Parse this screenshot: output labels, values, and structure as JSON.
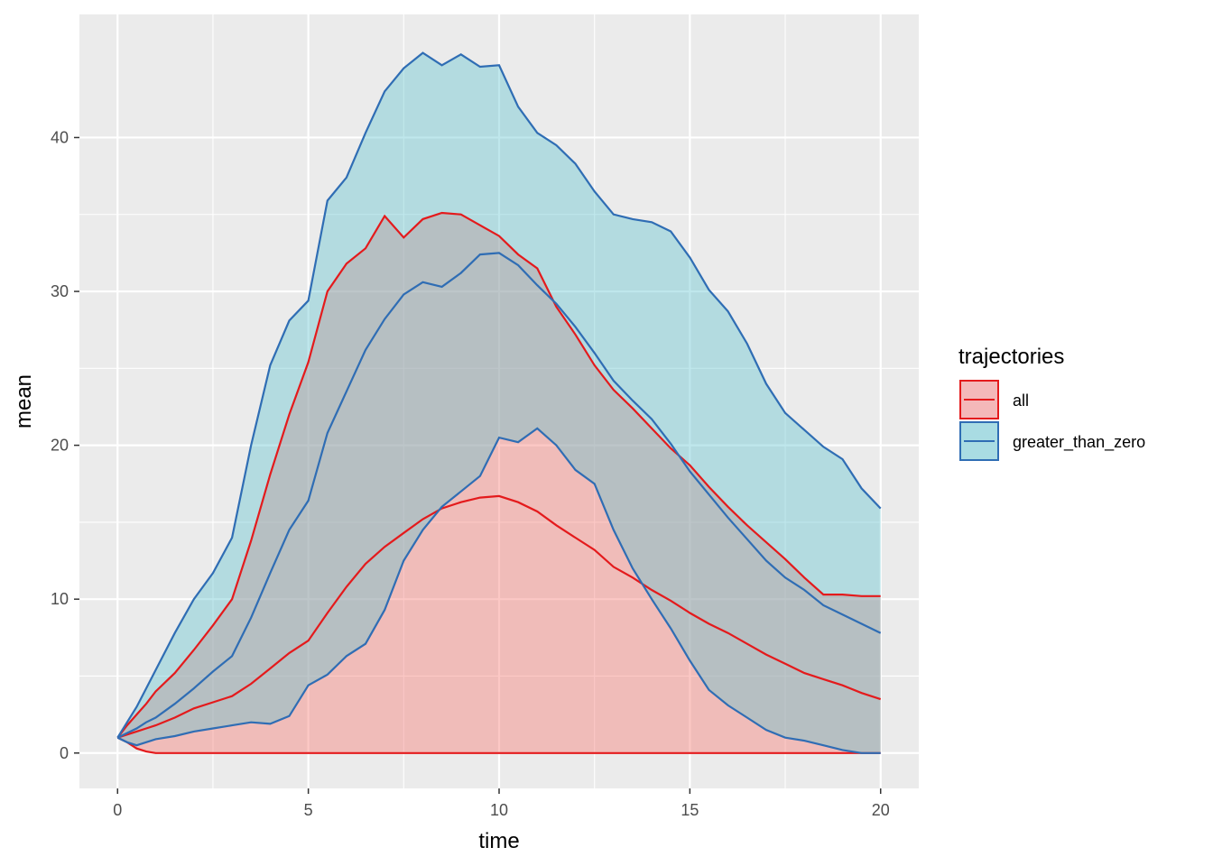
{
  "chart_data": {
    "type": "area",
    "xlabel": "time",
    "ylabel": "mean",
    "xlim": [
      -1,
      21
    ],
    "ylim": [
      -2.3,
      48
    ],
    "x_ticks": [
      0,
      5,
      10,
      15,
      20
    ],
    "x_tick_labels": [
      "0",
      "5",
      "10",
      "15",
      "20"
    ],
    "y_ticks": [
      0,
      10,
      20,
      30,
      40
    ],
    "y_tick_labels": [
      "0",
      "10",
      "20",
      "30",
      "40"
    ],
    "grid": true,
    "legend": {
      "title": "trajectories",
      "position": "right",
      "entries": [
        "all",
        "greater_than_zero"
      ]
    },
    "series": [
      {
        "name": "all",
        "color": "#e41a1c",
        "fill": "#f8766d",
        "x": [
          0,
          0.25,
          0.5,
          0.75,
          1,
          1.5,
          2,
          2.5,
          3,
          3.5,
          4,
          4.5,
          5,
          5.5,
          6,
          6.5,
          7,
          7.5,
          8,
          8.5,
          9,
          9.5,
          10,
          10.5,
          11,
          11.5,
          12,
          12.5,
          13,
          13.5,
          14,
          14.5,
          15,
          15.5,
          16,
          16.5,
          17,
          17.5,
          18,
          18.5,
          19,
          19.5,
          20
        ],
        "mean": [
          1,
          1.2,
          1.4,
          1.6,
          1.8,
          2.3,
          2.9,
          3.3,
          3.7,
          4.5,
          5.5,
          6.5,
          7.3,
          9.1,
          10.8,
          12.3,
          13.4,
          14.3,
          15.2,
          15.9,
          16.3,
          16.6,
          16.7,
          16.3,
          15.7,
          14.8,
          14,
          13.2,
          12.1,
          11.4,
          10.6,
          9.9,
          9.1,
          8.4,
          7.8,
          7.1,
          6.4,
          5.8,
          5.2,
          4.8,
          4.4,
          3.9,
          3.5
        ],
        "upper": [
          1,
          1.8,
          2.5,
          3.2,
          4,
          5.2,
          6.7,
          8.3,
          10,
          13.8,
          18.1,
          22,
          25.4,
          30,
          31.8,
          32.8,
          34.9,
          33.5,
          34.7,
          35.1,
          35,
          34.3,
          33.6,
          32.4,
          31.5,
          29,
          27.2,
          25.2,
          23.6,
          22.4,
          21.1,
          19.8,
          18.7,
          17.3,
          16,
          14.8,
          13.7,
          12.6,
          11.4,
          10.3,
          10.3,
          10.2,
          10.2
        ],
        "lower": [
          1,
          0.7,
          0.3,
          0.1,
          0,
          0,
          0,
          0,
          0,
          0,
          0,
          0,
          0,
          0,
          0,
          0,
          0,
          0,
          0,
          0,
          0,
          0,
          0,
          0,
          0,
          0,
          0,
          0,
          0,
          0,
          0,
          0,
          0,
          0,
          0,
          0,
          0,
          0,
          0,
          0,
          0,
          0,
          0
        ]
      },
      {
        "name": "greater_than_zero",
        "color": "#2f6db4",
        "fill": "#5fc4d0",
        "x": [
          0,
          0.25,
          0.5,
          0.75,
          1,
          1.5,
          2,
          2.5,
          3,
          3.5,
          4,
          4.5,
          5,
          5.5,
          6,
          6.5,
          7,
          7.5,
          8,
          8.5,
          9,
          9.5,
          10,
          10.5,
          11,
          11.5,
          12,
          12.5,
          13,
          13.5,
          14,
          14.5,
          15,
          15.5,
          16,
          16.5,
          17,
          17.5,
          18,
          18.5,
          19,
          19.5,
          20
        ],
        "mean": [
          1,
          1.3,
          1.6,
          2,
          2.3,
          3.2,
          4.2,
          5.3,
          6.3,
          8.8,
          11.7,
          14.5,
          16.4,
          20.8,
          23.5,
          26.2,
          28.2,
          29.8,
          30.6,
          30.3,
          31.2,
          32.4,
          32.5,
          31.7,
          30.4,
          29.2,
          27.7,
          26,
          24.2,
          22.9,
          21.7,
          20.1,
          18.3,
          16.8,
          15.3,
          13.9,
          12.5,
          11.4,
          10.6,
          9.6,
          9,
          8.4,
          7.8
        ],
        "upper": [
          1,
          2,
          3,
          4.2,
          5.4,
          7.8,
          10,
          11.7,
          14,
          20,
          25.2,
          28.1,
          29.4,
          35.9,
          37.4,
          40.3,
          43,
          44.5,
          45.5,
          44.7,
          45.4,
          44.6,
          44.7,
          42,
          40.3,
          39.5,
          38.3,
          36.5,
          35,
          34.7,
          34.5,
          33.9,
          32.2,
          30.1,
          28.7,
          26.6,
          24,
          22.1,
          21,
          19.9,
          19.1,
          17.2,
          15.9
        ],
        "lower": [
          1,
          0.7,
          0.5,
          0.7,
          0.9,
          1.1,
          1.4,
          1.6,
          1.8,
          2,
          1.9,
          2.4,
          4.4,
          5.1,
          6.3,
          7.1,
          9.3,
          12.5,
          14.5,
          16,
          17,
          18,
          20.5,
          20.2,
          21.1,
          20,
          18.4,
          17.5,
          14.5,
          12,
          10,
          8.1,
          6,
          4.1,
          3.1,
          2.3,
          1.5,
          1,
          0.8,
          0.5,
          0.2,
          0,
          0
        ]
      }
    ]
  }
}
